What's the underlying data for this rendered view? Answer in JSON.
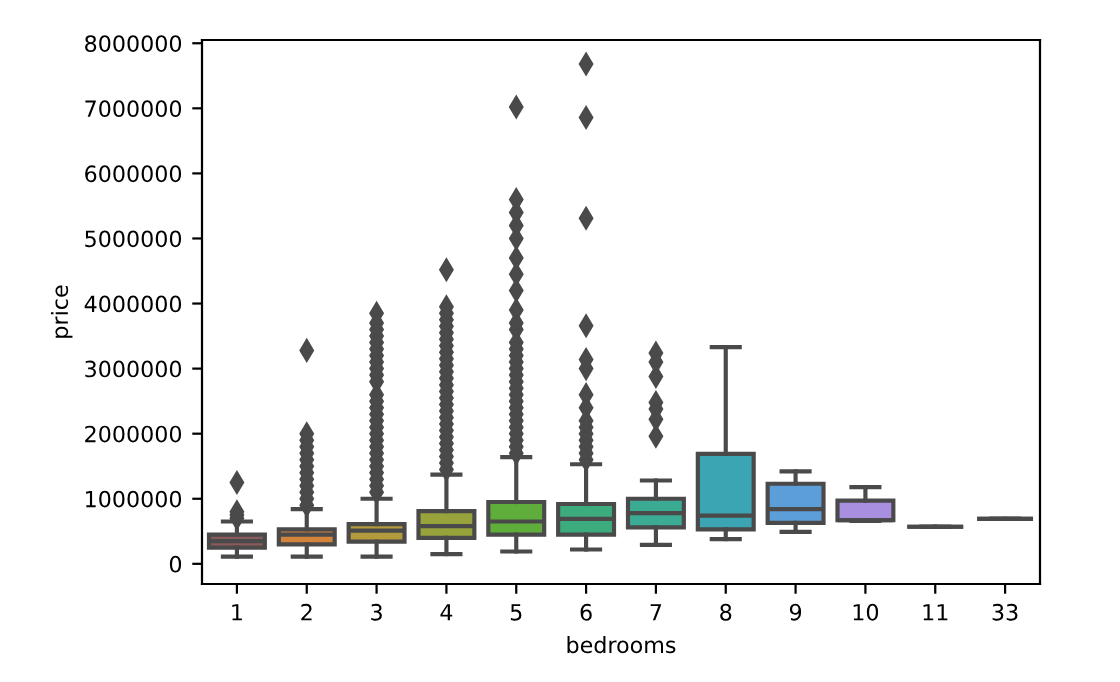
{
  "chart_data": {
    "type": "box",
    "xlabel": "bedrooms",
    "ylabel": "price",
    "categories": [
      "1",
      "2",
      "3",
      "4",
      "5",
      "6",
      "7",
      "8",
      "9",
      "10",
      "11",
      "33"
    ],
    "colors": [
      "#8b5a5d",
      "#d4833c",
      "#b39a3c",
      "#98a33c",
      "#5fae3c",
      "#3cab7d",
      "#3cab94",
      "#3ca5b3",
      "#5c9fd8",
      "#a98fe0",
      "#4a4a4a",
      "#4a4a4a"
    ],
    "ylim": [
      -310000,
      8050000
    ],
    "yticks": [
      0,
      1000000,
      2000000,
      3000000,
      4000000,
      5000000,
      6000000,
      7000000,
      8000000
    ],
    "grid": false,
    "marker": "diamond",
    "boxes": [
      {
        "low": 110000,
        "q1": 250000,
        "median": 350000,
        "q3": 450000,
        "high": 650000,
        "outliers": [
          700000,
          750000,
          800000,
          1250000
        ]
      },
      {
        "low": 110000,
        "q1": 300000,
        "median": 450000,
        "q3": 530000,
        "high": 840000,
        "outliers": [
          900000,
          1000000,
          1100000,
          1200000,
          1300000,
          1400000,
          1500000,
          1600000,
          1700000,
          1800000,
          1900000,
          2000000,
          3280000
        ]
      },
      {
        "low": 110000,
        "q1": 340000,
        "median": 510000,
        "q3": 610000,
        "high": 1000000,
        "outliers": [
          1100000,
          1200000,
          1300000,
          1400000,
          1500000,
          1600000,
          1700000,
          1800000,
          1900000,
          2000000,
          2100000,
          2200000,
          2300000,
          2400000,
          2500000,
          2600000,
          2800000,
          2900000,
          3000000,
          3100000,
          3200000,
          3300000,
          3400000,
          3500000,
          3600000,
          3700000,
          3850000
        ]
      },
      {
        "low": 150000,
        "q1": 400000,
        "median": 580000,
        "q3": 810000,
        "high": 1370000,
        "outliers": [
          1450000,
          1550000,
          1650000,
          1750000,
          1850000,
          1950000,
          2050000,
          2150000,
          2250000,
          2350000,
          2450000,
          2550000,
          2650000,
          2750000,
          2850000,
          2950000,
          3050000,
          3150000,
          3250000,
          3350000,
          3450000,
          3550000,
          3650000,
          3750000,
          3850000,
          3950000,
          4520000
        ]
      },
      {
        "low": 190000,
        "q1": 450000,
        "median": 650000,
        "q3": 950000,
        "high": 1640000,
        "outliers": [
          1700000,
          1800000,
          1900000,
          2000000,
          2100000,
          2200000,
          2300000,
          2400000,
          2500000,
          2600000,
          2700000,
          2800000,
          2900000,
          3000000,
          3100000,
          3200000,
          3300000,
          3400000,
          3600000,
          3700000,
          3900000,
          4200000,
          4450000,
          4700000,
          5000000,
          5200000,
          5400000,
          5600000,
          7020000
        ]
      },
      {
        "low": 220000,
        "q1": 450000,
        "median": 690000,
        "q3": 920000,
        "high": 1530000,
        "outliers": [
          1600000,
          1700000,
          1800000,
          1900000,
          2000000,
          2100000,
          2200000,
          2400000,
          2600000,
          3000000,
          3140000,
          3660000,
          5310000,
          6860000,
          7680000
        ]
      },
      {
        "low": 290000,
        "q1": 560000,
        "median": 780000,
        "q3": 1000000,
        "high": 1280000,
        "outliers": [
          1960000,
          2220000,
          2380000,
          2480000,
          2880000,
          3100000,
          3240000
        ]
      },
      {
        "low": 380000,
        "q1": 530000,
        "median": 740000,
        "q3": 1690000,
        "high": 3330000
      },
      {
        "low": 490000,
        "q1": 630000,
        "median": 840000,
        "q3": 1230000,
        "high": 1420000
      },
      {
        "low": 660000,
        "q1": 670000,
        "median": 670000,
        "q3": 970000,
        "high": 1180000
      },
      {
        "low": 570000,
        "q1": 570000,
        "median": 570000,
        "q3": 570000,
        "high": 570000
      },
      {
        "low": 690000,
        "q1": 690000,
        "median": 690000,
        "q3": 690000,
        "high": 690000
      }
    ]
  }
}
